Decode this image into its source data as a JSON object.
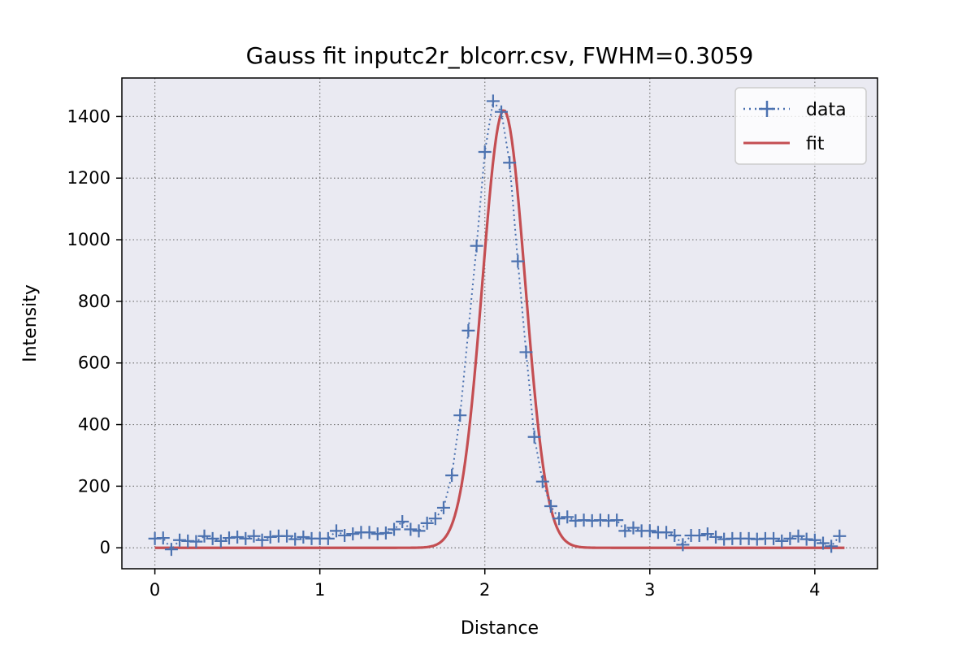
{
  "chart_data": {
    "type": "scatter",
    "title": "Gauss fit inputc2r_blcorr.csv, FWHM=0.3059",
    "xlabel": "Distance",
    "ylabel": "Intensity",
    "xlim": [
      -0.2,
      4.38
    ],
    "ylim": [
      -68,
      1525
    ],
    "xticks": [
      0,
      1,
      2,
      3,
      4
    ],
    "yticks": [
      0,
      200,
      400,
      600,
      800,
      1000,
      1200,
      1400
    ],
    "grid": true,
    "legend_position": "top-right",
    "colors": {
      "data": "#4c72b0",
      "fit": "#c44e52",
      "plot_bg": "#eaeaf2"
    },
    "series": [
      {
        "name": "data",
        "style": "dotted line with + markers",
        "x": [
          0.0,
          0.05,
          0.1,
          0.15,
          0.2,
          0.25,
          0.3,
          0.35,
          0.4,
          0.45,
          0.5,
          0.55,
          0.6,
          0.65,
          0.7,
          0.75,
          0.8,
          0.85,
          0.9,
          0.95,
          1.0,
          1.05,
          1.1,
          1.15,
          1.2,
          1.25,
          1.3,
          1.35,
          1.4,
          1.45,
          1.5,
          1.55,
          1.6,
          1.65,
          1.7,
          1.75,
          1.8,
          1.85,
          1.9,
          1.95,
          2.0,
          2.05,
          2.1,
          2.15,
          2.2,
          2.25,
          2.3,
          2.35,
          2.4,
          2.45,
          2.5,
          2.55,
          2.6,
          2.65,
          2.7,
          2.75,
          2.8,
          2.85,
          2.9,
          2.95,
          3.0,
          3.05,
          3.1,
          3.15,
          3.2,
          3.25,
          3.3,
          3.35,
          3.4,
          3.45,
          3.5,
          3.55,
          3.6,
          3.65,
          3.7,
          3.75,
          3.8,
          3.85,
          3.9,
          3.95,
          4.0,
          4.05,
          4.1,
          4.15
        ],
        "y": [
          30,
          32,
          -5,
          25,
          22,
          20,
          38,
          30,
          22,
          32,
          35,
          30,
          38,
          25,
          35,
          38,
          38,
          28,
          35,
          30,
          30,
          30,
          55,
          40,
          45,
          50,
          50,
          45,
          48,
          60,
          85,
          60,
          55,
          80,
          95,
          130,
          235,
          430,
          705,
          980,
          1285,
          1450,
          1415,
          1250,
          930,
          635,
          360,
          215,
          135,
          95,
          100,
          88,
          90,
          88,
          90,
          88,
          90,
          55,
          65,
          55,
          55,
          50,
          50,
          40,
          10,
          40,
          40,
          45,
          35,
          28,
          30,
          30,
          30,
          28,
          30,
          30,
          22,
          30,
          38,
          28,
          25,
          15,
          5,
          38
        ]
      },
      {
        "name": "fit",
        "style": "solid line",
        "gaussian": {
          "amplitude": 1420,
          "center": 2.115,
          "fwhm": 0.3059
        },
        "x_range": [
          0.0,
          4.18
        ]
      }
    ]
  }
}
